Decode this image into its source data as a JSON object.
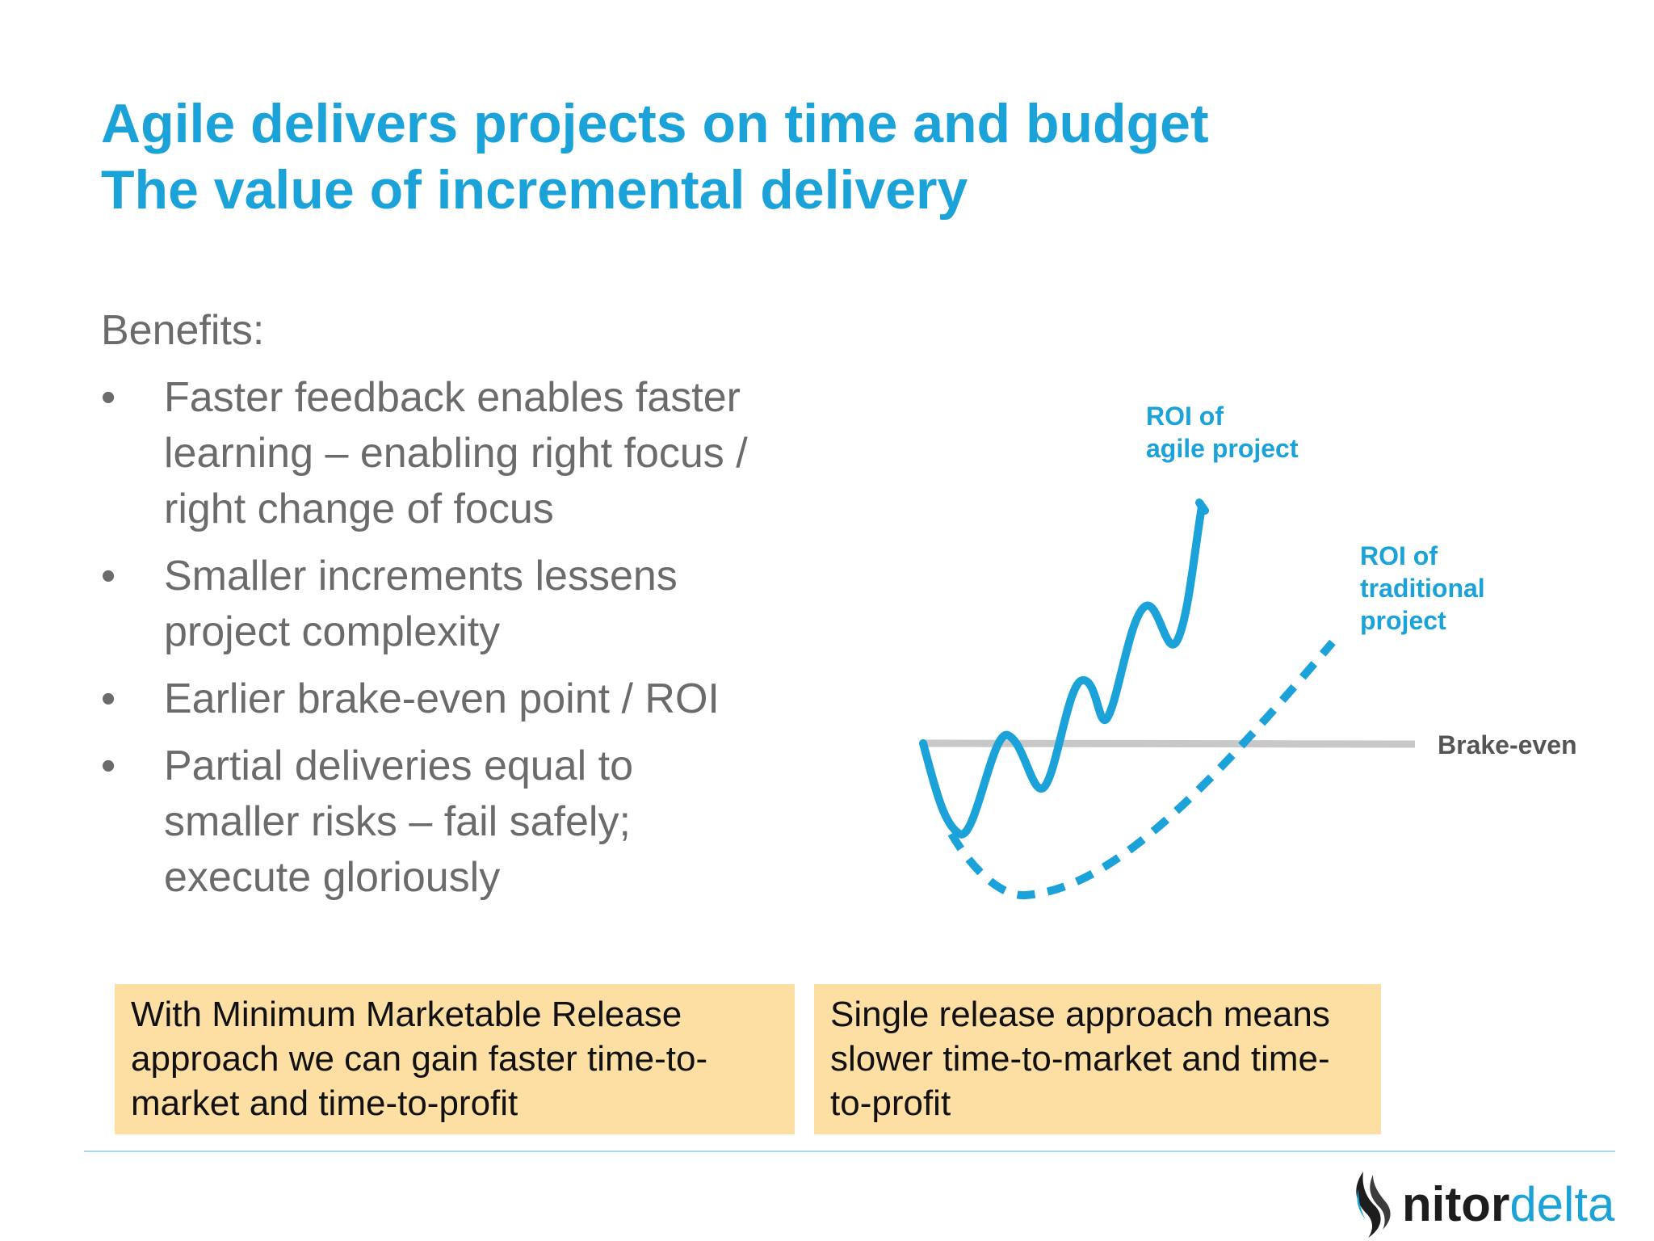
{
  "title": {
    "line1": "Agile delivers projects on time and budget",
    "line2": "The value of incremental delivery"
  },
  "benefits": {
    "heading": "Benefits:",
    "bullet_glyph": "•",
    "items": [
      {
        "lines": [
          "Faster feedback enables faster",
          "learning – enabling right focus /",
          "right change of focus"
        ]
      },
      {
        "lines": [
          "Smaller increments lessens",
          "project complexity"
        ]
      },
      {
        "lines": [
          "Earlier brake-even point / ROI"
        ]
      },
      {
        "lines": [
          "Partial deliveries equal to",
          "smaller risks – fail safely;",
          "execute gloriously"
        ]
      }
    ]
  },
  "chart": {
    "agile_label": [
      "ROI of",
      "agile project"
    ],
    "traditional_label": [
      "ROI of",
      "traditional",
      "project"
    ],
    "breakeven_label": "Brake-even",
    "colors": {
      "line": "#1aa2d9",
      "breakeven": "#c8c8c8",
      "breakeven_text": "#555555"
    }
  },
  "callouts": {
    "left": [
      "With Minimum Marketable Release",
      "approach we can gain faster time-to-",
      "market and time-to-profit"
    ],
    "right": [
      "Single release approach means",
      "slower time-to-market and time-",
      "to-profit"
    ]
  },
  "logo": {
    "part1": "nitor",
    "part2": "delta"
  },
  "colors": {
    "title": "#1aa2d9",
    "body_text": "#6b6b6b",
    "callout_bg": "#fddfa4",
    "divider": "#a9d9e6"
  }
}
